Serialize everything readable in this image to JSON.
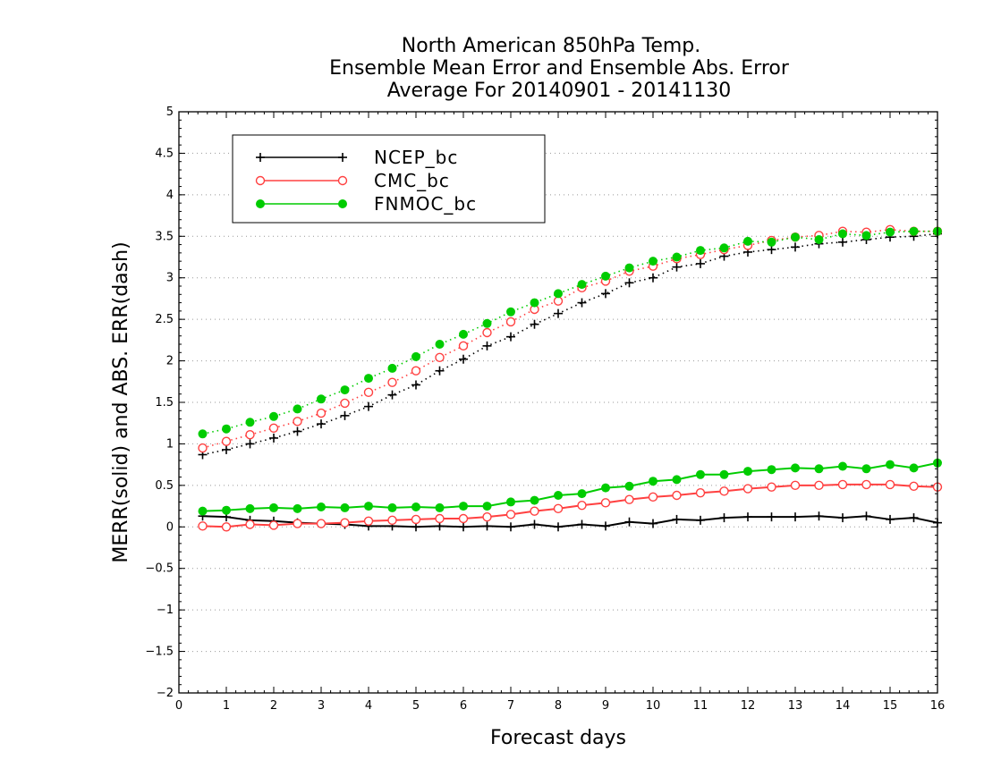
{
  "chart_data": {
    "type": "line",
    "title_lines": [
      "North American 850hPa Temp.",
      "Ensemble Mean Error and Ensemble Abs. Error",
      "Average For 20140901 - 20141130"
    ],
    "xlabel": "Forecast days",
    "ylabel": "MERR(solid) and ABS. ERR(dash)",
    "xlim": [
      0,
      16
    ],
    "ylim": [
      -2,
      5
    ],
    "xticks": [
      "0",
      "1",
      "2",
      "3",
      "4",
      "5",
      "6",
      "7",
      "8",
      "9",
      "10",
      "11",
      "12",
      "13",
      "14",
      "15",
      "16"
    ],
    "yticks": [
      "−2",
      "−1.5",
      "−1",
      "−0.5",
      "0",
      "0.5",
      "1",
      "1.5",
      "2",
      "2.5",
      "3",
      "3.5",
      "4",
      "4.5",
      "5"
    ],
    "grid": "horizontal dotted",
    "legend_position": "top-left",
    "x": [
      0.5,
      1.0,
      1.5,
      2.0,
      2.5,
      3.0,
      3.5,
      4.0,
      4.5,
      5.0,
      5.5,
      6.0,
      6.5,
      7.0,
      7.5,
      8.0,
      8.5,
      9.0,
      9.5,
      10.0,
      10.5,
      11.0,
      11.5,
      12.0,
      12.5,
      13.0,
      13.5,
      14.0,
      14.5,
      15.0,
      15.5,
      16.0
    ],
    "series": [
      {
        "name": "NCEP_bc",
        "color": "#000000",
        "marker": "plus",
        "merr": [
          0.13,
          0.12,
          0.08,
          0.07,
          0.05,
          0.04,
          0.03,
          0.01,
          0.01,
          0.0,
          0.01,
          0.0,
          0.01,
          0.0,
          0.03,
          0.0,
          0.03,
          0.01,
          0.06,
          0.04,
          0.09,
          0.08,
          0.11,
          0.12,
          0.12,
          0.12,
          0.13,
          0.11,
          0.13,
          0.09,
          0.11,
          0.05
        ],
        "abs_err": [
          0.87,
          0.93,
          1.0,
          1.07,
          1.15,
          1.24,
          1.34,
          1.45,
          1.59,
          1.71,
          1.88,
          2.02,
          2.18,
          2.29,
          2.44,
          2.57,
          2.7,
          2.81,
          2.94,
          3.0,
          3.13,
          3.17,
          3.26,
          3.31,
          3.34,
          3.37,
          3.41,
          3.43,
          3.46,
          3.49,
          3.5,
          3.53
        ]
      },
      {
        "name": "CMC_bc",
        "color": "#ff4040",
        "marker": "open-circle",
        "merr": [
          0.01,
          0.0,
          0.03,
          0.02,
          0.04,
          0.04,
          0.05,
          0.07,
          0.08,
          0.09,
          0.1,
          0.1,
          0.12,
          0.15,
          0.19,
          0.22,
          0.26,
          0.29,
          0.33,
          0.36,
          0.38,
          0.41,
          0.43,
          0.46,
          0.48,
          0.5,
          0.5,
          0.51,
          0.51,
          0.51,
          0.49,
          0.48
        ],
        "abs_err": [
          0.95,
          1.03,
          1.11,
          1.19,
          1.27,
          1.37,
          1.49,
          1.62,
          1.74,
          1.88,
          2.04,
          2.18,
          2.34,
          2.47,
          2.62,
          2.72,
          2.88,
          2.96,
          3.08,
          3.14,
          3.23,
          3.28,
          3.34,
          3.39,
          3.45,
          3.49,
          3.51,
          3.56,
          3.55,
          3.58,
          3.56,
          3.56
        ]
      },
      {
        "name": "FNMOC_bc",
        "color": "#00cc00",
        "marker": "filled-circle",
        "merr": [
          0.19,
          0.2,
          0.22,
          0.23,
          0.22,
          0.24,
          0.23,
          0.25,
          0.23,
          0.24,
          0.23,
          0.25,
          0.25,
          0.3,
          0.32,
          0.38,
          0.4,
          0.47,
          0.49,
          0.55,
          0.57,
          0.63,
          0.63,
          0.67,
          0.69,
          0.71,
          0.7,
          0.73,
          0.7,
          0.75,
          0.71,
          0.77
        ],
        "abs_err": [
          1.12,
          1.18,
          1.26,
          1.33,
          1.42,
          1.54,
          1.65,
          1.79,
          1.91,
          2.05,
          2.2,
          2.32,
          2.45,
          2.59,
          2.7,
          2.81,
          2.92,
          3.02,
          3.12,
          3.2,
          3.25,
          3.33,
          3.36,
          3.44,
          3.43,
          3.49,
          3.46,
          3.53,
          3.51,
          3.55,
          3.56,
          3.56
        ]
      }
    ]
  }
}
